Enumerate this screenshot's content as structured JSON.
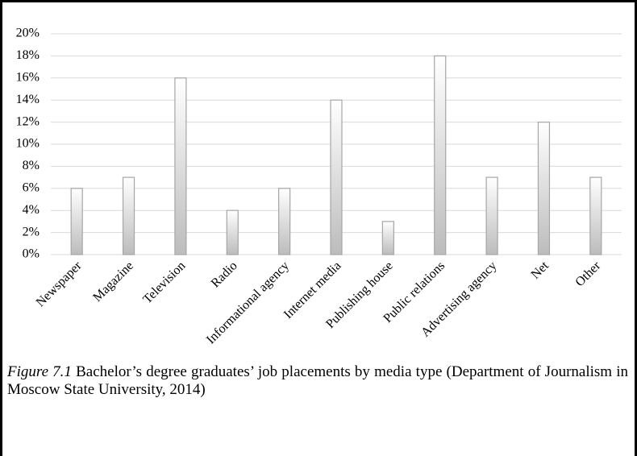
{
  "chart_data": {
    "type": "bar",
    "categories": [
      "Newspaper",
      "Magazine",
      "Television",
      "Radio",
      "Informational agency",
      "Internet media",
      "Publishing house",
      "Public relations",
      "Advertising agency",
      "Net",
      "Other"
    ],
    "values": [
      6,
      7,
      16,
      4,
      6,
      14,
      3,
      18,
      7,
      12,
      7
    ],
    "color": "#a6a6a6",
    "ylim": [
      0,
      20
    ],
    "yticks": [
      {
        "value": 0,
        "label": "0%"
      },
      {
        "value": 2,
        "label": "2%"
      },
      {
        "value": 4,
        "label": "4%"
      },
      {
        "value": 6,
        "label": "6%"
      },
      {
        "value": 8,
        "label": "8%"
      },
      {
        "value": 10,
        "label": "10%"
      },
      {
        "value": 12,
        "label": "12%"
      },
      {
        "value": 14,
        "label": "14%"
      },
      {
        "value": 16,
        "label": "16%"
      },
      {
        "value": 18,
        "label": "18%"
      },
      {
        "value": 20,
        "label": "20%"
      }
    ],
    "grid": true,
    "caption_label": "Figure 7.1",
    "caption_text": "Bachelor’s degree graduates’ job placements by media type (Department of Journalism in Moscow State University, 2014)"
  }
}
